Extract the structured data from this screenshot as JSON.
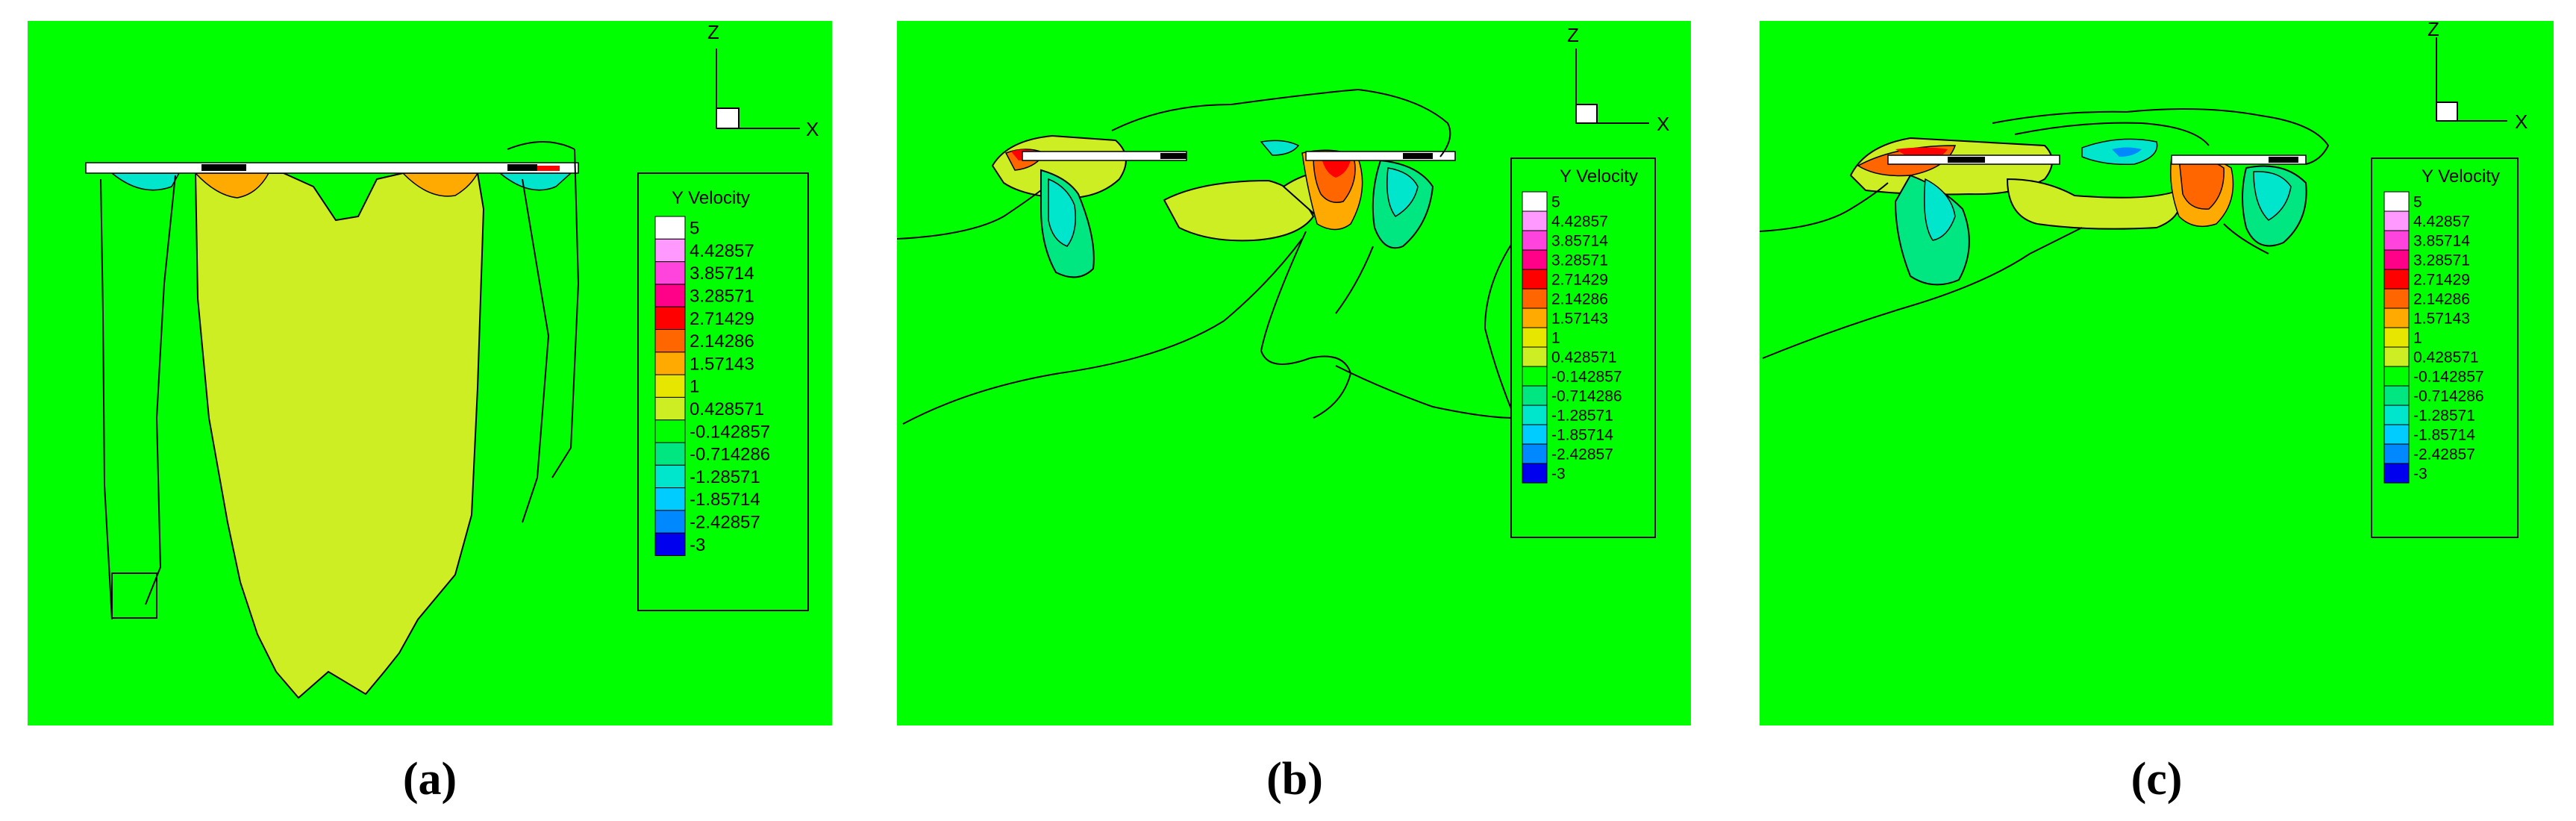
{
  "chart_data": [
    {
      "type": "heatmap",
      "panel_label": "a",
      "axis_labels": {
        "vertical": "Z",
        "horizontal": "X"
      },
      "legend_title": "Y Velocity",
      "levels": [
        "5",
        "4.42857",
        "3.85714",
        "3.28571",
        "2.71429",
        "2.14286",
        "1.57143",
        "1",
        "0.428571",
        "-0.142857",
        "-0.714286",
        "-1.28571",
        "-1.85714",
        "-2.42857",
        "-3"
      ]
    },
    {
      "type": "heatmap",
      "panel_label": "b",
      "axis_labels": {
        "vertical": "Z",
        "horizontal": "X"
      },
      "legend_title": "Y Velocity",
      "levels": [
        "5",
        "4.42857",
        "3.85714",
        "3.28571",
        "2.71429",
        "2.14286",
        "1.57143",
        "1",
        "0.428571",
        "-0.142857",
        "-0.714286",
        "-1.28571",
        "-1.85714",
        "-2.42857",
        "-3"
      ]
    },
    {
      "type": "heatmap",
      "panel_label": "c",
      "axis_labels": {
        "vertical": "Z",
        "horizontal": "X"
      },
      "legend_title": "Y Velocity",
      "levels": [
        "5",
        "4.42857",
        "3.85714",
        "3.28571",
        "2.71429",
        "2.14286",
        "1.57143",
        "1",
        "0.428571",
        "-0.142857",
        "-0.714286",
        "-1.28571",
        "-1.85714",
        "-2.42857",
        "-3"
      ]
    }
  ],
  "captions": [
    "(a)",
    "(b)",
    "(c)"
  ],
  "colors": {
    "background": "#00ff00",
    "level_colors": [
      "#ffffff",
      "#ff99ff",
      "#ff44dd",
      "#ff0088",
      "#ff0000",
      "#ff6600",
      "#ffaa00",
      "#e6e600",
      "#ccee22",
      "#00ff00",
      "#00e680",
      "#00e6cc",
      "#00ccff",
      "#0088ff",
      "#0000ee"
    ]
  }
}
